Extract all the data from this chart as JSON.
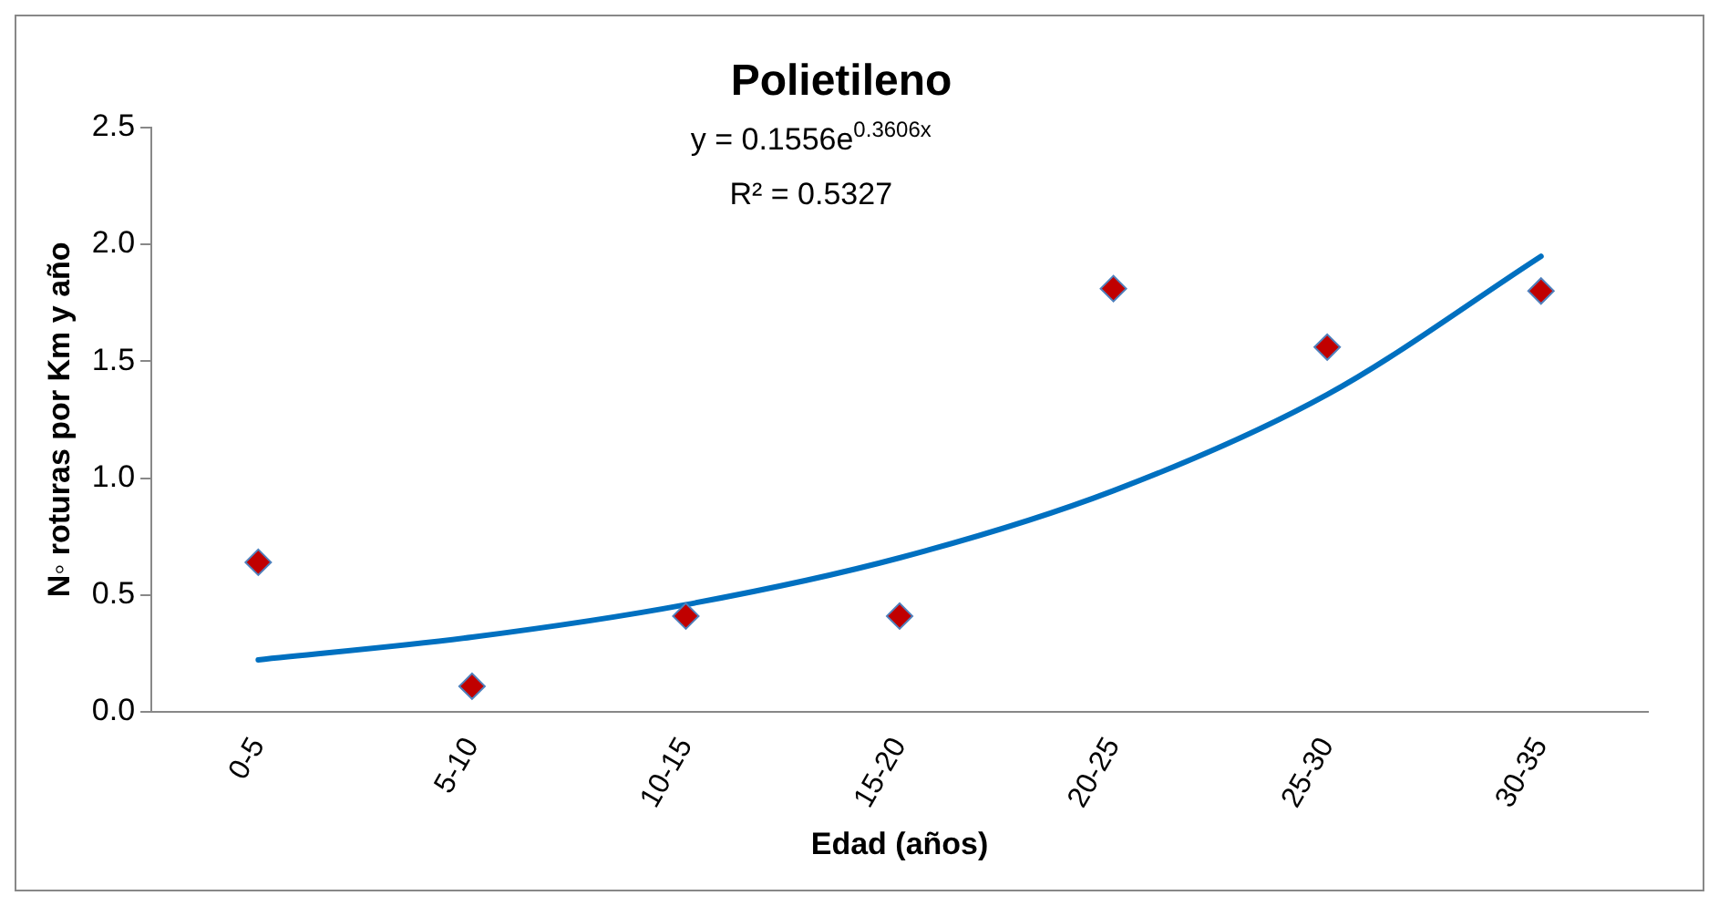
{
  "chart_data": {
    "type": "scatter",
    "title": "Polietileno",
    "xlabel": "Edad (años)",
    "ylabel": "N◦ roturas por Km y año",
    "categories": [
      "0-5",
      "5-10",
      "10-15",
      "15-20",
      "20-25",
      "25-30",
      "30-35"
    ],
    "series": [
      {
        "color": "#c00000",
        "marker": "diamond",
        "values": [
          0.64,
          0.11,
          0.41,
          0.41,
          1.81,
          1.56,
          1.8
        ]
      },
      {
        "type": "line",
        "color": "#0070c0",
        "marker": "none",
        "values": [
          0.223,
          0.32,
          0.459,
          0.659,
          0.946,
          1.357,
          1.948
        ]
      }
    ],
    "ylim": [
      0,
      2.5
    ],
    "yticks": [
      {
        "value": 0,
        "label": "0.0"
      },
      {
        "value": 0.5,
        "label": "0.5"
      },
      {
        "value": 1,
        "label": "1.0"
      },
      {
        "value": 1.5,
        "label": "1.5"
      },
      {
        "value": 2,
        "label": "2.0"
      },
      {
        "value": 2.5,
        "label": "2.5"
      }
    ],
    "annotations": [
      "y = 0.1556e$^{0.3606x}$",
      "R² = 0.5327"
    ],
    "grid": false,
    "legend": false
  }
}
